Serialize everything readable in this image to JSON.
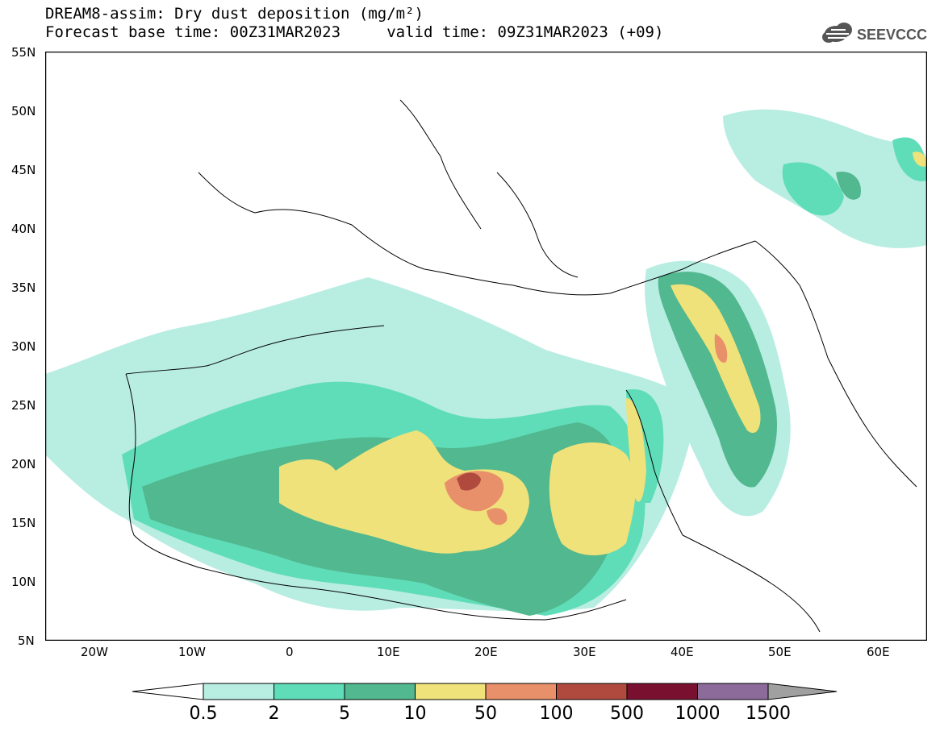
{
  "header": {
    "title_line1": "DREAM8-assim: Dry dust deposition (mg/m²)",
    "title_line2": "Forecast base time: 00Z31MAR2023     valid time: 09Z31MAR2023 (+09)",
    "logo_text": "SEEVCCC"
  },
  "map": {
    "extent": {
      "lon_min": -25,
      "lon_max": 65,
      "lat_min": 5,
      "lat_max": 55
    },
    "lat_labels": [
      "55N",
      "50N",
      "45N",
      "40N",
      "35N",
      "30N",
      "25N",
      "20N",
      "15N",
      "10N",
      "5N"
    ],
    "lon_labels": [
      "20W",
      "10W",
      "0",
      "10E",
      "20E",
      "30E",
      "40E",
      "50E",
      "60E"
    ]
  },
  "colorbar": {
    "labels": [
      "0.5",
      "2",
      "5",
      "10",
      "50",
      "100",
      "500",
      "1000",
      "1500"
    ],
    "colors": [
      "#b8ede2",
      "#5fddb8",
      "#52b88f",
      "#f0e27a",
      "#e8906a",
      "#b04a3e",
      "#7a1030",
      "#8c6a9a"
    ],
    "under_color": "#ffffff",
    "over_color": "#a0a0a0"
  },
  "legend_levels": {
    "level1_color": "#b8ede2",
    "level2_color": "#5fddb8",
    "level3_color": "#52b88f",
    "level4_color": "#f0e27a",
    "level5_color": "#e8906a",
    "level6_color": "#b04a3e"
  }
}
